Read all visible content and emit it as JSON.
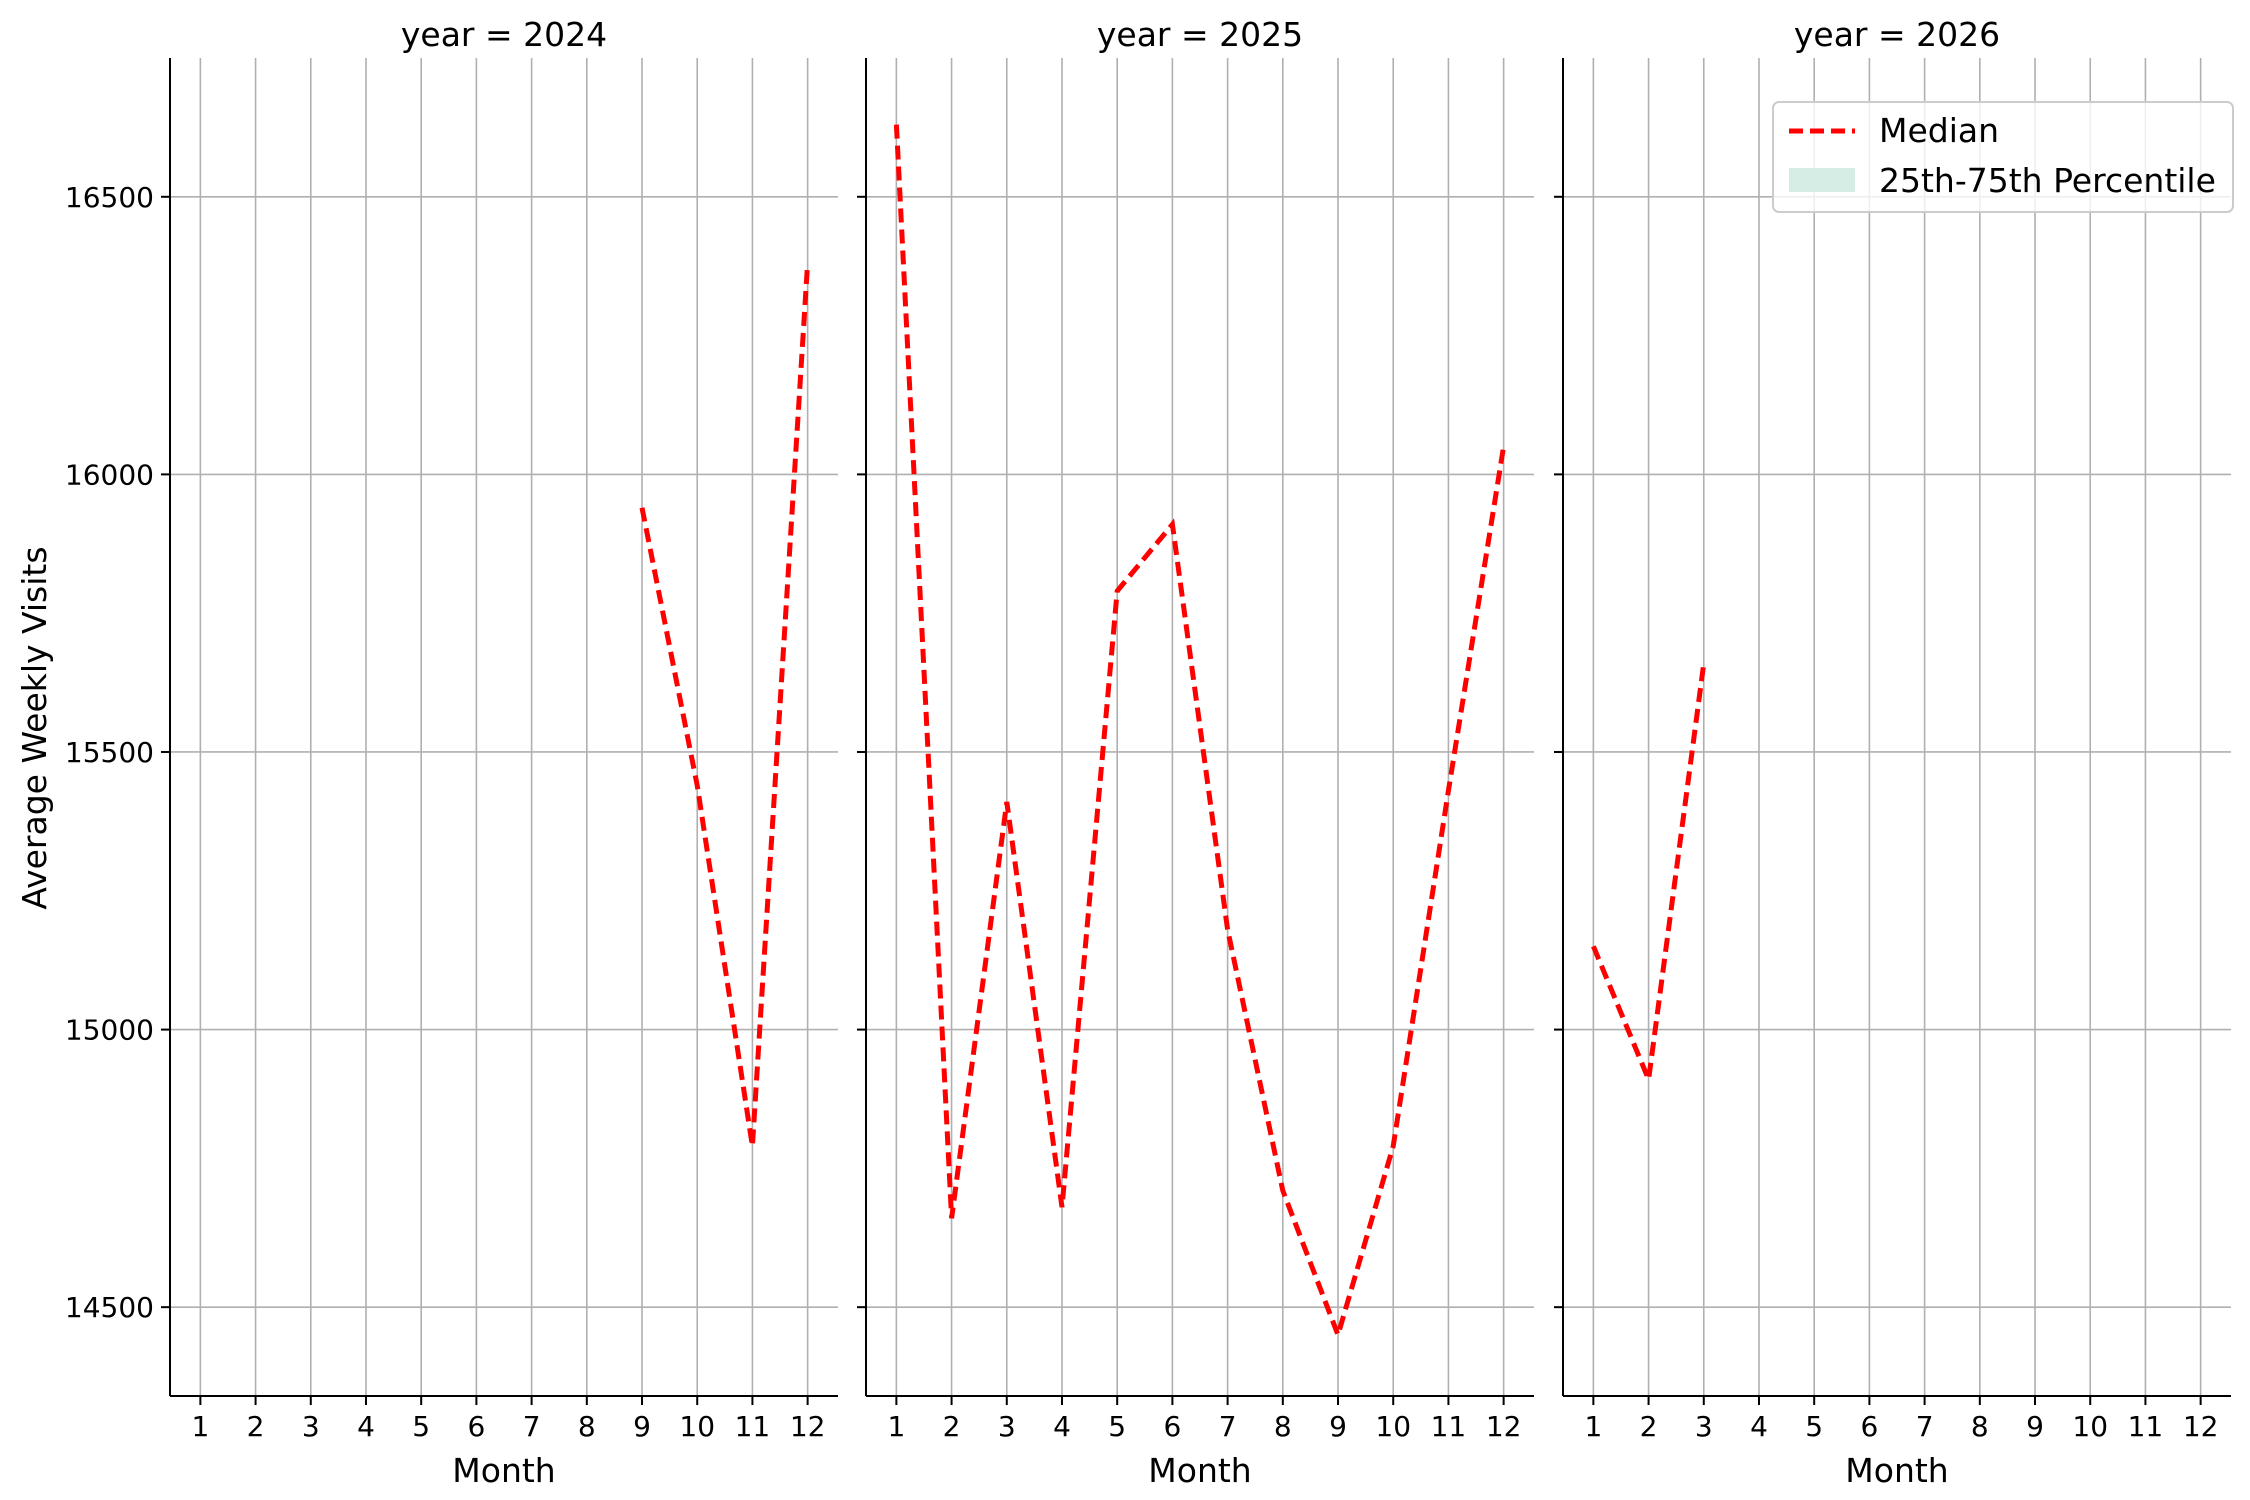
{
  "chart_data": {
    "type": "line",
    "ylabel": "Average Weekly Visits",
    "xlabel": "Month",
    "ylim": [
      14340,
      16750
    ],
    "yticks": [
      14500,
      15000,
      15500,
      16000,
      16500
    ],
    "xticks": [
      1,
      2,
      3,
      4,
      5,
      6,
      7,
      8,
      9,
      10,
      11,
      12
    ],
    "xlim": [
      0.45,
      12.55
    ],
    "grid": true,
    "legend": {
      "placement": "top-right",
      "entries": [
        {
          "label": "Median",
          "style": "dashed-line",
          "color": "#ff0000"
        },
        {
          "label": "25th-75th Percentile",
          "style": "filled-patch",
          "color": "#d6ede6"
        }
      ]
    },
    "panels": [
      {
        "title": "year = 2024",
        "series": [
          {
            "name": "Median",
            "x": [
              9,
              10,
              11,
              12
            ],
            "values": [
              15940,
              15440,
              14790,
              16380
            ]
          }
        ]
      },
      {
        "title": "year = 2025",
        "series": [
          {
            "name": "Median",
            "x": [
              1,
              2,
              3,
              4,
              5,
              6,
              7,
              8,
              9,
              10,
              11,
              12
            ],
            "values": [
              16630,
              14660,
              15410,
              14680,
              15790,
              15910,
              15180,
              14710,
              14450,
              14790,
              15430,
              16050
            ]
          }
        ]
      },
      {
        "title": "year = 2026",
        "series": [
          {
            "name": "Median",
            "x": [
              1,
              2,
              3
            ],
            "values": [
              15150,
              14910,
              15660
            ]
          }
        ]
      }
    ],
    "colors": {
      "median": "#ff0000",
      "percentile_band": "#d6ede6",
      "grid": "#b0b0b0",
      "axis": "#000000"
    }
  }
}
